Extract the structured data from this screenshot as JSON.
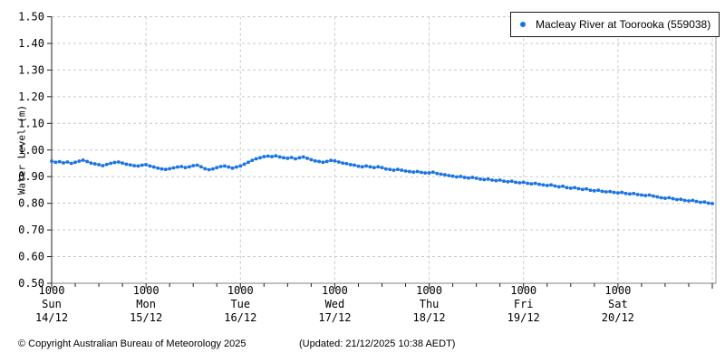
{
  "colors": {
    "series_blue": "#1b74e4",
    "grid_gray": "#c9c9c9",
    "frame_gray": "#a0a0a0",
    "axis_black": "#222222",
    "bottom_axis": "#808080",
    "text_black": "#000000",
    "background": "#ffffff"
  },
  "legend": {
    "label": "Macleay River at Toorooka (559038)"
  },
  "footer": {
    "copyright": "© Copyright Australian Bureau of Meteorology 2025",
    "updated": "(Updated: 21/12/2025 10:38 AEDT)"
  },
  "chart_data": {
    "type": "scatter",
    "title": "",
    "xlabel": "",
    "ylabel": "Water Level (m)",
    "ylim": [
      0.5,
      1.5
    ],
    "ytick_step": 0.1,
    "grid": true,
    "legend_position": "top-right",
    "x_major_ticks": [
      {
        "time": "1000",
        "day": "Sun",
        "date": "14/12"
      },
      {
        "time": "1000",
        "day": "Mon",
        "date": "15/12"
      },
      {
        "time": "1000",
        "day": "Tue",
        "date": "16/12"
      },
      {
        "time": "1000",
        "day": "Wed",
        "date": "17/12"
      },
      {
        "time": "1000",
        "day": "Thu",
        "date": "18/12"
      },
      {
        "time": "1000",
        "day": "Fri",
        "date": "19/12"
      },
      {
        "time": "1000",
        "day": "Sat",
        "date": "20/12"
      }
    ],
    "hours_per_major": 24,
    "minor_tick_hours": 6,
    "total_hours": 168,
    "series": [
      {
        "name": "Macleay River at Toorooka (559038)",
        "color": "#1b74e4",
        "start_label": "Sun 14/12 1000",
        "interval_hours": 1,
        "values": [
          0.958,
          0.954,
          0.956,
          0.952,
          0.955,
          0.95,
          0.954,
          0.958,
          0.962,
          0.957,
          0.951,
          0.948,
          0.945,
          0.941,
          0.946,
          0.95,
          0.953,
          0.955,
          0.951,
          0.947,
          0.944,
          0.941,
          0.94,
          0.943,
          0.945,
          0.94,
          0.936,
          0.932,
          0.929,
          0.927,
          0.93,
          0.933,
          0.936,
          0.938,
          0.934,
          0.937,
          0.941,
          0.943,
          0.937,
          0.93,
          0.926,
          0.929,
          0.934,
          0.938,
          0.94,
          0.936,
          0.932,
          0.936,
          0.94,
          0.947,
          0.954,
          0.961,
          0.967,
          0.971,
          0.975,
          0.977,
          0.975,
          0.978,
          0.974,
          0.971,
          0.969,
          0.972,
          0.967,
          0.971,
          0.974,
          0.969,
          0.964,
          0.959,
          0.957,
          0.954,
          0.957,
          0.961,
          0.959,
          0.955,
          0.951,
          0.949,
          0.945,
          0.943,
          0.939,
          0.937,
          0.94,
          0.937,
          0.934,
          0.937,
          0.934,
          0.929,
          0.927,
          0.924,
          0.927,
          0.924,
          0.921,
          0.919,
          0.917,
          0.919,
          0.916,
          0.914,
          0.914,
          0.917,
          0.912,
          0.909,
          0.907,
          0.904,
          0.902,
          0.899,
          0.901,
          0.897,
          0.895,
          0.897,
          0.894,
          0.891,
          0.889,
          0.891,
          0.887,
          0.885,
          0.887,
          0.883,
          0.881,
          0.883,
          0.879,
          0.877,
          0.879,
          0.875,
          0.873,
          0.875,
          0.871,
          0.869,
          0.867,
          0.869,
          0.865,
          0.862,
          0.864,
          0.859,
          0.857,
          0.859,
          0.855,
          0.852,
          0.854,
          0.849,
          0.847,
          0.849,
          0.845,
          0.843,
          0.844,
          0.841,
          0.839,
          0.841,
          0.837,
          0.835,
          0.837,
          0.833,
          0.831,
          0.829,
          0.831,
          0.827,
          0.824,
          0.821,
          0.819,
          0.821,
          0.817,
          0.814,
          0.815,
          0.811,
          0.809,
          0.811,
          0.807,
          0.804,
          0.805,
          0.801,
          0.799
        ]
      }
    ]
  }
}
